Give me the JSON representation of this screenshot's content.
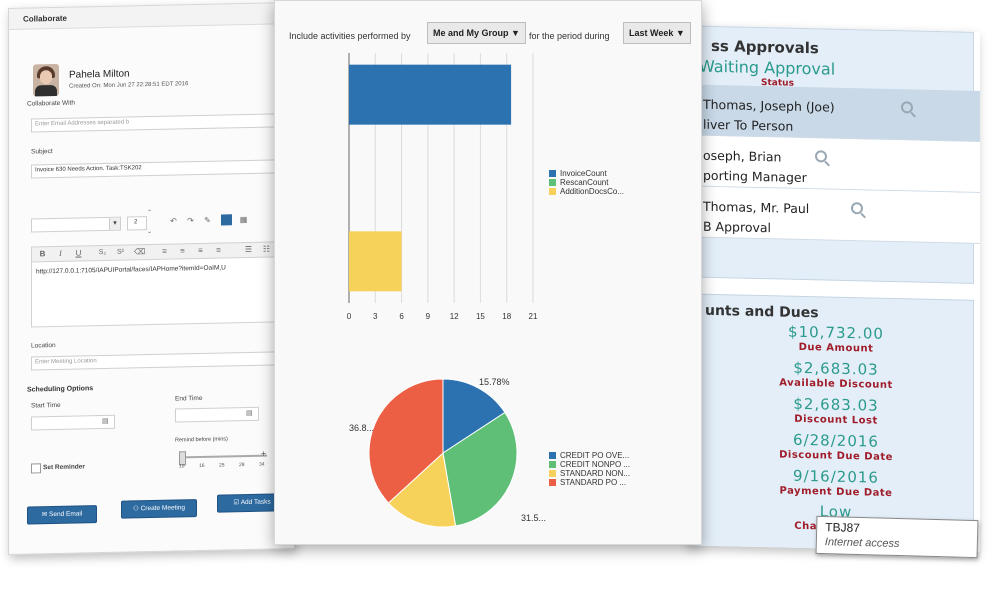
{
  "collaborate": {
    "title": "Collaborate",
    "user_name": "Pahela Milton",
    "created_on": "Created On: Mon Jun 27 22:28:51 EDT 2016",
    "collaborate_with_label": "Collaborate With",
    "collaborate_with_placeholder": "Enter Email Addresses separated b",
    "subject_label": "Subject",
    "subject_value": "Invoice 630 Needs Action. Task:TSK202",
    "font_size_value": "2",
    "editor_text": "http://127.0.0.1:7105/IAPUIPortal/faces/IAPHome?itemId=OaIM,U",
    "location_label": "Location",
    "location_placeholder": "Enter Meeting Location",
    "scheduling_label": "Scheduling Options",
    "start_time_label": "Start Time",
    "end_time_label": "End Time",
    "remind_label": "Remind before (mins)",
    "set_reminder_label": "Set Reminder",
    "slider_ticks": [
      "10",
      "16",
      "25",
      "28",
      "34"
    ],
    "slider_value": 10,
    "send_email_label": "Send Email",
    "create_meeting_label": "Create Meeting",
    "add_tasks_label": "Add Tasks"
  },
  "controls": {
    "include_label": "Include activities performed by",
    "group_dropdown": "Me and My Group",
    "period_label": "for the period during",
    "period_dropdown": "Last Week"
  },
  "chart_data": [
    {
      "type": "bar",
      "orientation": "horizontal",
      "series": [
        {
          "name": "InvoiceCount",
          "value": 18.5,
          "color": "#2c72b0"
        },
        {
          "name": "RescanCount",
          "value": 0,
          "color": "#5fbf77"
        },
        {
          "name": "AdditionDocsCo...",
          "value": 6,
          "color": "#f7d25b"
        }
      ],
      "xticks": [
        "0",
        "3",
        "6",
        "9",
        "12",
        "15",
        "18",
        "21"
      ],
      "xlim": [
        0,
        21
      ],
      "grid": true,
      "legend_position": "right"
    },
    {
      "type": "pie",
      "slices": [
        {
          "name": "CREDIT PO OVE...",
          "value": 15.78,
          "color": "#2c72b0"
        },
        {
          "name": "CREDIT NONPO ...",
          "value": 31.5,
          "color": "#5fbf77"
        },
        {
          "name": "STANDARD NON...",
          "value": 15.9,
          "color": "#f7d25b"
        },
        {
          "name": "STANDARD PO ...",
          "value": 36.82,
          "color": "#ec5f45"
        }
      ],
      "visible_labels": [
        "15.78%",
        "31.5...",
        "36.8..."
      ],
      "legend_position": "right"
    }
  ],
  "approvals": {
    "title": "ss Approvals",
    "status_value": "Waiting Approval",
    "status_label": "Status",
    "rows": [
      {
        "name": "Thomas, Joseph (Joe)",
        "role": "liver To Person"
      },
      {
        "name": "oseph, Brian",
        "role": "porting Manager"
      },
      {
        "name": "Thomas, Mr. Paul",
        "role": "B Approval"
      }
    ]
  },
  "amounts": {
    "title": "unts and Dues",
    "items": [
      {
        "value": "$10,732.00",
        "label": "Due Amount"
      },
      {
        "value": "$2,683.03",
        "label": "Available Discount"
      },
      {
        "value": "$2,683.03",
        "label": "Discount Lost"
      },
      {
        "value": "6/28/2016",
        "label": "Discount Due Date"
      },
      {
        "value": "9/16/2016",
        "label": "Payment Due Date"
      },
      {
        "value": "Low",
        "label": "Chances of Di"
      }
    ]
  },
  "tooltip": {
    "title": "TBJ87",
    "text": "Internet access"
  },
  "colors": {
    "accent": "#2d6aa0",
    "teal": "#2a9a8c",
    "maroon": "#a01c2a"
  }
}
